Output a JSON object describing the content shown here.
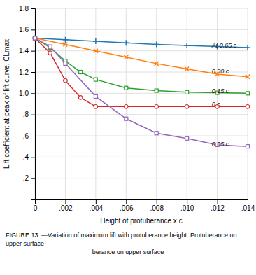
{
  "chart_data": {
    "type": "line",
    "xlabel": "Height of protuberance x c",
    "ylabel": "Lift coefficient at peak of lift curve, CLmax",
    "xlim": [
      0,
      0.014
    ],
    "ylim": [
      0,
      1.8
    ],
    "xticks": [
      0,
      {
        "value": 0.002,
        "label": ".002"
      },
      {
        "value": 0.004,
        "label": ".004"
      },
      {
        "value": 0.006,
        "label": ".006"
      },
      {
        "value": 0.008,
        "label": ".008"
      },
      {
        "value": 0.01,
        "label": ".010"
      },
      {
        "value": 0.012,
        "label": ".012"
      },
      {
        "value": 0.014,
        "label": ".014"
      }
    ],
    "yticks": [
      {
        "value": 0.0,
        "label": null
      },
      {
        "value": 0.2,
        "label": ".2"
      },
      {
        "value": 0.4,
        "label": ".4"
      },
      {
        "value": 0.6,
        "label": ".6"
      },
      {
        "value": 0.8,
        "label": ".8"
      },
      {
        "value": 1.0,
        "label": "1.0"
      },
      1.2,
      1.4,
      1.6,
      1.8
    ],
    "grid": true,
    "series": [
      {
        "x": [
          0,
          0.002,
          0.004,
          0.006,
          0.008,
          0.01,
          0.012,
          0.014
        ],
        "values": [
          1.52,
          1.505,
          1.49,
          1.475,
          1.46,
          1.45,
          1.44,
          1.43
        ],
        "marker": "plus"
      },
      {
        "x": [
          0,
          0.002,
          0.004,
          0.006,
          0.008,
          0.01,
          0.012,
          0.014
        ],
        "values": [
          1.52,
          1.46,
          1.4,
          1.34,
          1.28,
          1.23,
          1.18,
          1.155
        ],
        "marker": "cross"
      },
      {
        "x": [
          0,
          0.001,
          0.002,
          0.003,
          0.004,
          0.006,
          0.008,
          0.01,
          0.012,
          0.014
        ],
        "values": [
          1.52,
          1.43,
          1.305,
          1.2,
          1.13,
          1.05,
          1.025,
          1.01,
          1.005,
          1.0
        ],
        "marker": "open-square"
      },
      {
        "x": [
          0,
          0.001,
          0.002,
          0.003,
          0.004,
          0.006,
          0.008,
          0.01,
          0.012,
          0.014
        ],
        "values": [
          1.52,
          1.38,
          1.12,
          0.96,
          0.875,
          0.875,
          0.875,
          0.875,
          0.875,
          0.875
        ],
        "marker": "open-circle"
      },
      {
        "x": [
          0,
          0.001,
          0.002,
          0.004,
          0.006,
          0.008,
          0.01,
          0.012,
          0.014
        ],
        "values": [
          1.52,
          1.44,
          1.28,
          0.97,
          0.76,
          0.625,
          0.575,
          0.515,
          0.5
        ],
        "marker": "open-square"
      }
    ],
    "annotations": [
      {
        "text": "At 0.65 c",
        "x": 0.01155,
        "y": 1.445
      },
      {
        "text": "0.30 c",
        "x": 0.01155,
        "y": 1.2
      },
      {
        "text": "0.15 c",
        "x": 0.01155,
        "y": 1.015
      },
      {
        "text": "0 c",
        "x": 0.01155,
        "y": 0.895
      },
      {
        "text": "0.05 c",
        "x": 0.01155,
        "y": 0.515
      }
    ],
    "caption": [
      "FIGURE 13.",
      "—Variation of maximum lift with protuberance height.  Protuberance on upper surface",
      "berance on upper surface"
    ]
  }
}
